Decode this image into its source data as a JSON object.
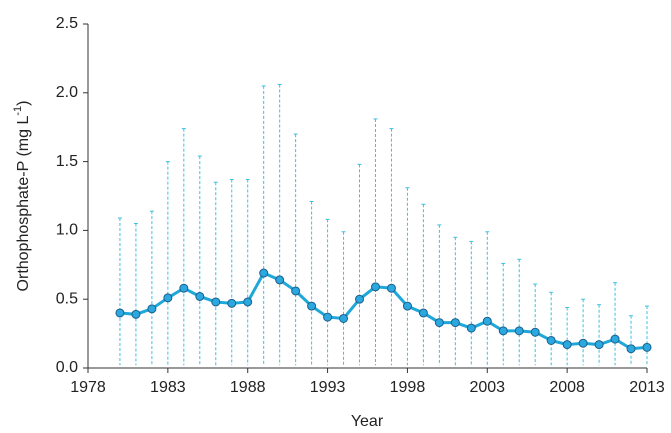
{
  "chart_data": {
    "type": "line-errorbar",
    "x_label": "Year",
    "y_label": {
      "text": "Orthophosphate-P (mg L",
      "superscript": "-1",
      "suffix": ")"
    },
    "x": [
      1980,
      1981,
      1982,
      1983,
      1984,
      1985,
      1986,
      1987,
      1988,
      1989,
      1990,
      1991,
      1992,
      1993,
      1994,
      1995,
      1996,
      1997,
      1998,
      1999,
      2000,
      2001,
      2002,
      2003,
      2004,
      2005,
      2006,
      2007,
      2008,
      2009,
      2010,
      2011,
      2012,
      2013
    ],
    "values": [
      0.4,
      0.39,
      0.43,
      0.51,
      0.58,
      0.52,
      0.48,
      0.47,
      0.48,
      0.69,
      0.64,
      0.56,
      0.45,
      0.37,
      0.36,
      0.5,
      0.59,
      0.58,
      0.45,
      0.4,
      0.33,
      0.33,
      0.29,
      0.34,
      0.27,
      0.27,
      0.26,
      0.2,
      0.17,
      0.18,
      0.17,
      0.21,
      0.14,
      0.15
    ],
    "upper": [
      1.09,
      1.05,
      1.14,
      1.5,
      1.74,
      1.54,
      1.35,
      1.37,
      1.37,
      2.05,
      2.06,
      1.7,
      1.21,
      1.08,
      0.99,
      1.48,
      1.81,
      1.74,
      1.31,
      1.19,
      1.04,
      0.95,
      0.92,
      0.99,
      0.76,
      0.79,
      0.61,
      0.55,
      0.44,
      0.5,
      0.46,
      0.62,
      0.38,
      0.45
    ],
    "lower": [
      0.02,
      0.02,
      0.02,
      0.02,
      0.02,
      0.02,
      0.02,
      0.02,
      0.02,
      0.02,
      0.02,
      0.02,
      0.02,
      0.02,
      0.02,
      0.02,
      0.02,
      0.02,
      0.02,
      0.02,
      0.02,
      0.02,
      0.02,
      0.02,
      0.02,
      0.02,
      0.02,
      0.02,
      0.02,
      0.02,
      0.02,
      0.02,
      0.02,
      0.02
    ],
    "color": "#1ea7d9",
    "marker_color": "#2aa8df",
    "marker_edge": "#1d5f8c",
    "error_color": "#3dbfe3",
    "xlim": [
      1978,
      2013
    ],
    "xticks": [
      1978,
      1983,
      1988,
      1993,
      1998,
      2003,
      2008,
      2013
    ],
    "ylim": [
      0,
      2.5
    ],
    "yticks": [
      {
        "value": 0,
        "label": "0.0"
      },
      {
        "value": 0.5,
        "label": "0.5"
      },
      {
        "value": 1,
        "label": "1.0"
      },
      {
        "value": 1.5,
        "label": "1.5"
      },
      {
        "value": 2,
        "label": "2.0"
      },
      {
        "value": 2.5,
        "label": "2.5"
      }
    ]
  }
}
